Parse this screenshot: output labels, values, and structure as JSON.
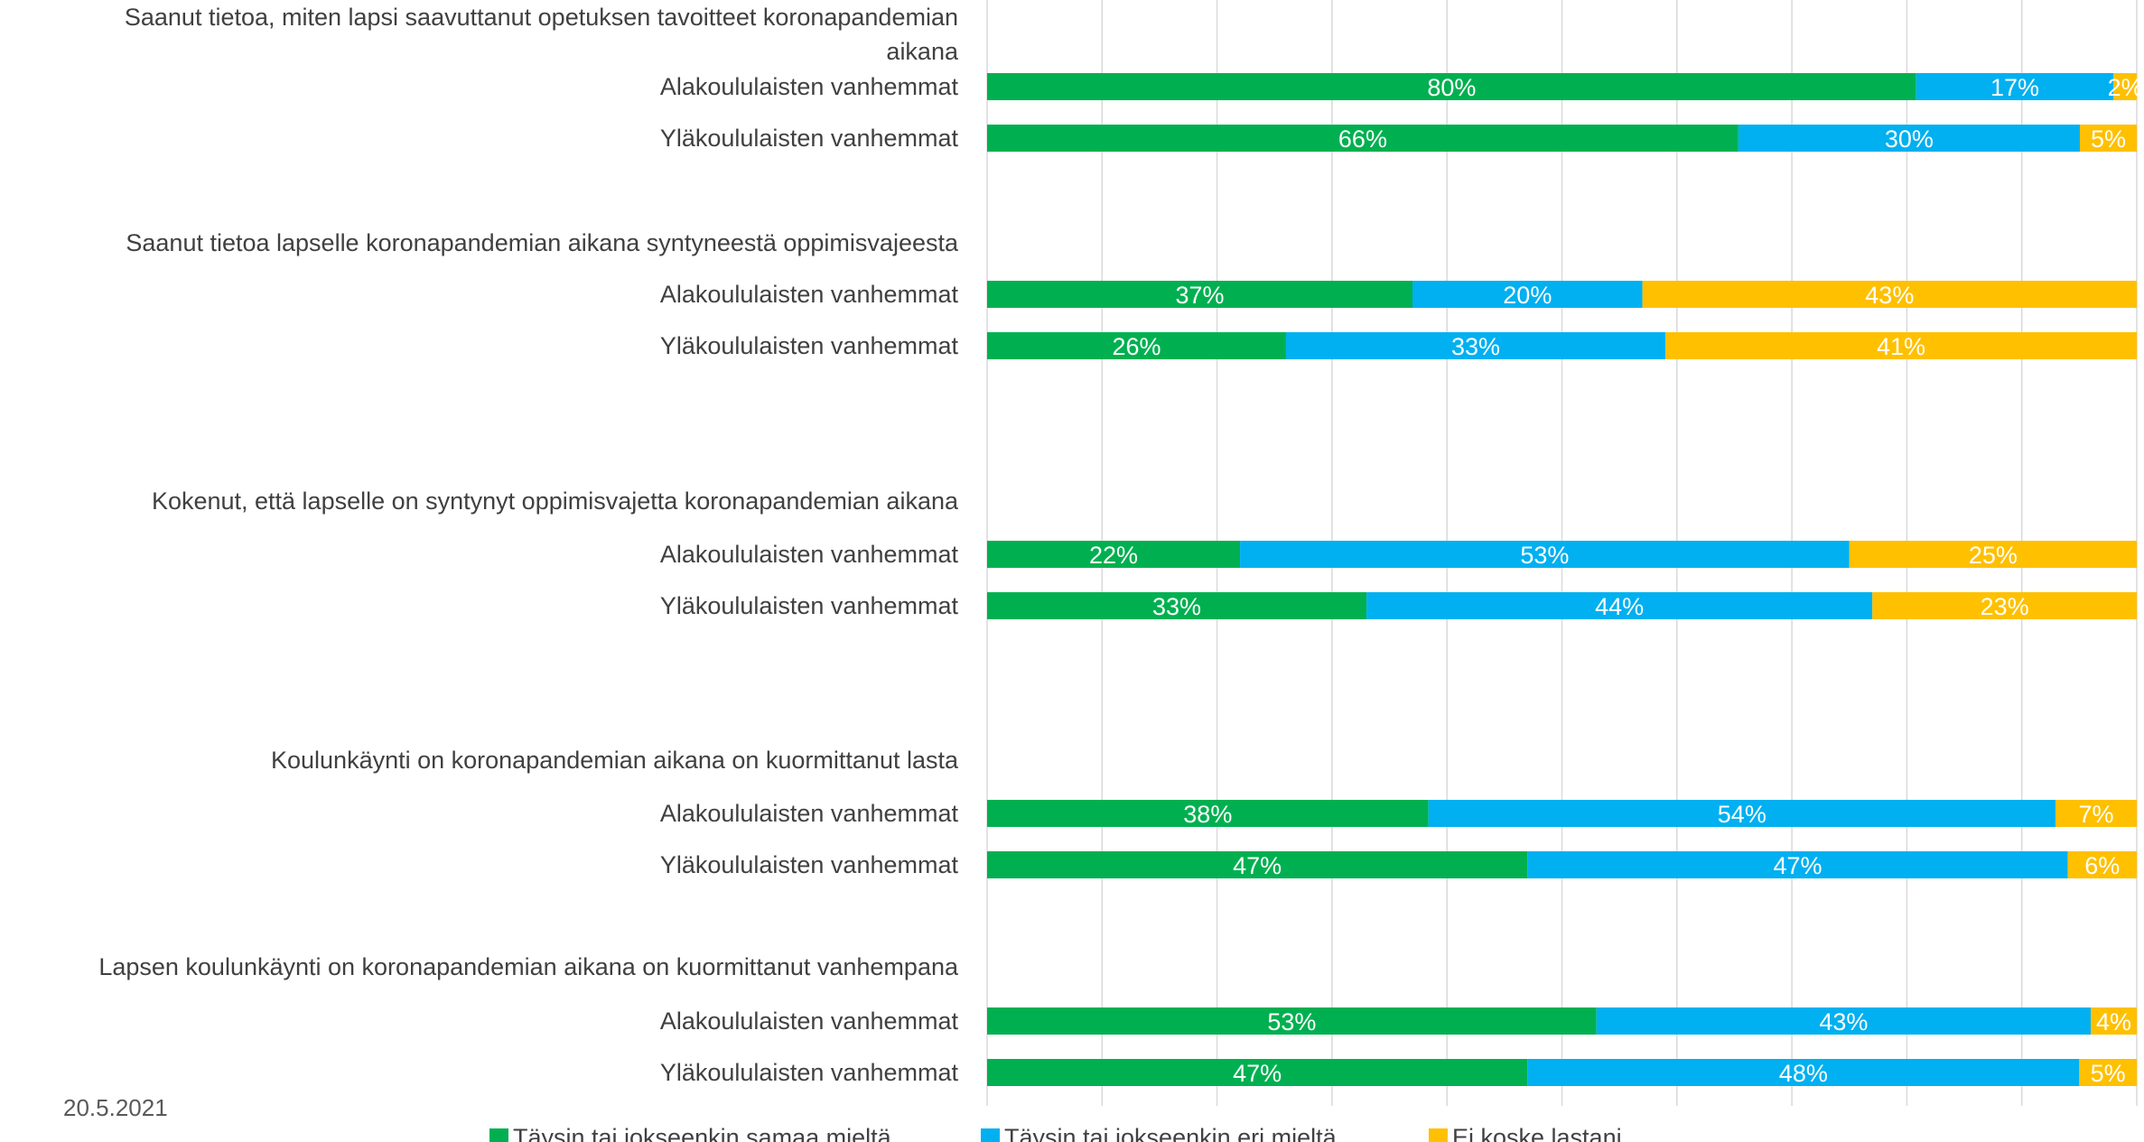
{
  "date": "20.5.2021",
  "chart_data": {
    "type": "bar",
    "orientation": "horizontal",
    "stacked": "percent",
    "grid": true,
    "legend_position": "bottom",
    "xlim": [
      0,
      100
    ],
    "series": [
      {
        "name": "Täysin tai jokseenkin samaa mieltä",
        "color": "#00b050"
      },
      {
        "name": "Täysin tai jokseenkin eri mieltä",
        "color": "#00b0f0"
      },
      {
        "name": "Ei koske lastani",
        "color": "#ffc000"
      }
    ],
    "groups": [
      {
        "label_lines": [
          "Saanut tietoa, miten lapsi saavuttanut opetuksen tavoitteet koronapandemian",
          "aikana"
        ],
        "rows": [
          {
            "label": "Alakoululaisten vanhemmat",
            "values": [
              80,
              17,
              2
            ]
          },
          {
            "label": "Yläkoululaisten vanhemmat",
            "values": [
              66,
              30,
              5
            ]
          }
        ]
      },
      {
        "label_lines": [
          "Saanut tietoa lapselle koronapandemian aikana syntyneestä oppimisvajeesta"
        ],
        "rows": [
          {
            "label": "Alakoululaisten vanhemmat",
            "values": [
              37,
              20,
              43
            ]
          },
          {
            "label": "Yläkoululaisten vanhemmat",
            "values": [
              26,
              33,
              41
            ]
          }
        ]
      },
      {
        "label_lines": [
          "Kokenut, että lapselle on syntynyt oppimisvajetta koronapandemian aikana"
        ],
        "rows": [
          {
            "label": "Alakoululaisten vanhemmat",
            "values": [
              22,
              53,
              25
            ]
          },
          {
            "label": "Yläkoululaisten vanhemmat",
            "values": [
              33,
              44,
              23
            ]
          }
        ]
      },
      {
        "label_lines": [
          "Koulunkäynti on koronapandemian aikana on kuormittanut lasta"
        ],
        "rows": [
          {
            "label": "Alakoululaisten vanhemmat",
            "values": [
              38,
              54,
              7
            ]
          },
          {
            "label": "Yläkoululaisten vanhemmat",
            "values": [
              47,
              47,
              6
            ]
          }
        ]
      },
      {
        "label_lines": [
          "Lapsen koulunkäynti on koronapandemian aikana on kuormittanut vanhempana"
        ],
        "rows": [
          {
            "label": "Alakoululaisten vanhemmat",
            "values": [
              53,
              43,
              4
            ]
          },
          {
            "label": "Yläkoululaisten vanhemmat",
            "values": [
              47,
              48,
              5
            ]
          }
        ]
      }
    ]
  }
}
